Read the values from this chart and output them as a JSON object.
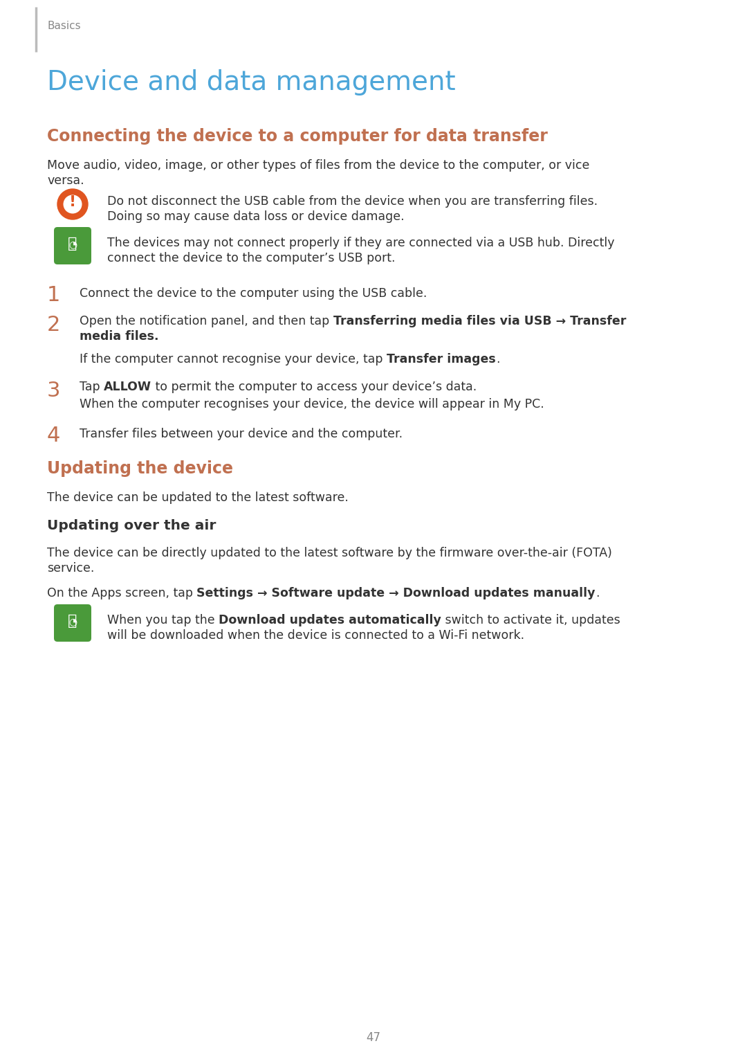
{
  "bg_color": "#ffffff",
  "page_number": "47",
  "header_label": "Basics",
  "header_label_color": "#888888",
  "left_bar_color": "#bbbbbb",
  "title_main": "Device and data management",
  "title_main_color": "#4da6d9",
  "section1_title": "Connecting the device to a computer for data transfer",
  "section1_title_color": "#c07050",
  "section1_body": "Move audio, video, image, or other types of files from the device to the computer, or vice versa.",
  "warning1_line1": "Do not disconnect the USB cable from the device when you are transferring files.",
  "warning1_line2": "Doing so may cause data loss or device damage.",
  "warning_icon_color": "#e05520",
  "note1_line1": "The devices may not connect properly if they are connected via a USB hub. Directly",
  "note1_line2": "connect the device to the computer’s USB port.",
  "note_icon_color": "#4a9a3a",
  "body_color": "#333333",
  "step_num_color": "#c07050",
  "step1_text": "Connect the device to the computer using the USB cable.",
  "step2_pre": "Open the notification panel, and then tap ",
  "step2_bold": "Transferring media files via USB → Transfer media files.",
  "step2_sub_pre": "If the computer cannot recognise your device, tap ",
  "step2_sub_bold": "Transfer images",
  "step2_sub_post": ".",
  "step3_pre": "Tap ",
  "step3_bold": "ALLOW",
  "step3_post": " to permit the computer to access your device’s data.",
  "step3_sub": "When the computer recognises your device, the device will appear in My PC.",
  "step4_text": "Transfer files between your device and the computer.",
  "section2_title": "Updating the device",
  "section2_title_color": "#c07050",
  "section2_body": "The device can be updated to the latest software.",
  "subsec1_title": "Updating over the air",
  "subsec1_body1_line1": "The device can be directly updated to the latest software by the firmware over-the-air (FOTA)",
  "subsec1_body1_line2": "service.",
  "subsec1_body2_pre": "On the Apps screen, tap ",
  "subsec1_body2_bold": "Settings → Software update → Download updates manually",
  "subsec1_body2_post": ".",
  "note2_pre": "When you tap the ",
  "note2_bold": "Download updates automatically",
  "note2_post": " switch to activate it, updates will be downloaded when the device is connected to a Wi-Fi network."
}
